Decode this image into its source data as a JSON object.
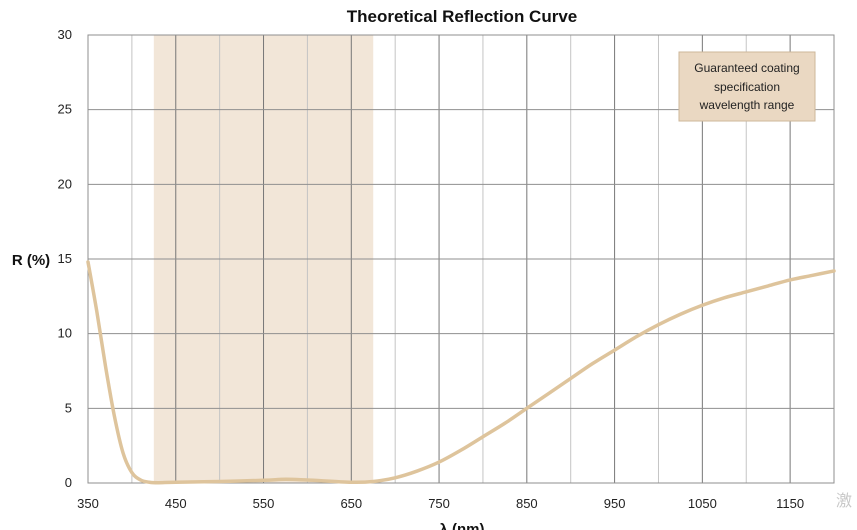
{
  "chart_data": {
    "type": "line",
    "title": "Theoretical Reflection Curve",
    "xlabel": "λ (nm)",
    "ylabel": "R (%)",
    "xlim": [
      350,
      1200
    ],
    "ylim": [
      0,
      30
    ],
    "xticks": [
      350,
      450,
      550,
      650,
      750,
      850,
      950,
      1050,
      1150
    ],
    "yticks": [
      0,
      5,
      10,
      15,
      20,
      25,
      30
    ],
    "grid": true,
    "series": [
      {
        "color": "#dec49c",
        "x": [
          350,
          360,
          370,
          380,
          390,
          400,
          410,
          420,
          430,
          450,
          500,
          550,
          575,
          600,
          650,
          675,
          700,
          725,
          750,
          775,
          800,
          825,
          850,
          875,
          900,
          925,
          950,
          975,
          1000,
          1025,
          1050,
          1075,
          1100,
          1125,
          1150,
          1175,
          1200
        ],
        "y": [
          14.8,
          11.5,
          7.8,
          4.5,
          2.0,
          0.7,
          0.2,
          0.05,
          0.02,
          0.05,
          0.1,
          0.18,
          0.25,
          0.2,
          0.05,
          0.1,
          0.35,
          0.8,
          1.4,
          2.2,
          3.1,
          4.0,
          5.0,
          6.0,
          7.0,
          8.0,
          8.9,
          9.8,
          10.6,
          11.3,
          11.9,
          12.4,
          12.8,
          13.2,
          13.6,
          13.9,
          14.2
        ]
      }
    ],
    "shaded_region": {
      "x_range": [
        425,
        675
      ],
      "color": "#f2e6d8"
    },
    "annotation": {
      "lines": [
        "Guaranteed coating",
        "specification",
        "wavelength range"
      ],
      "bg_color": "#ead8c2",
      "border_color": "#cdb79a"
    },
    "watermark": "激 转动"
  }
}
